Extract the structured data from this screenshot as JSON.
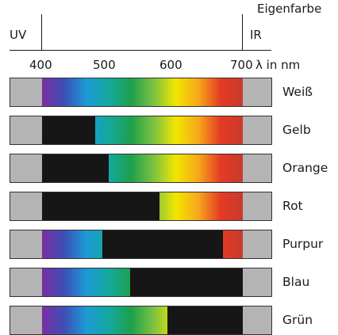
{
  "labels": {
    "eigenfarbe": "Eigenfarbe",
    "uv": "UV",
    "ir": "IR",
    "unit": "λ in nm"
  },
  "ticks": [
    "400",
    "500",
    "600",
    "700"
  ],
  "axis_range_nm": [
    400,
    700
  ],
  "rows": [
    {
      "label": "Weiß",
      "absorbed_nm": []
    },
    {
      "label": "Gelb",
      "absorbed_nm": [
        400,
        480
      ]
    },
    {
      "label": "Orange",
      "absorbed_nm": [
        400,
        500
      ]
    },
    {
      "label": "Rot",
      "absorbed_nm": [
        400,
        575
      ]
    },
    {
      "label": "Purpur",
      "absorbed_nm": [
        490,
        670
      ]
    },
    {
      "label": "Blau",
      "absorbed_nm": [
        532,
        700
      ]
    },
    {
      "label": "Grün",
      "absorbed_nm": [
        587,
        700
      ]
    }
  ],
  "colors": {
    "outside": "#b4b4b4",
    "absorbed": "#161616",
    "spectrum": [
      "#7a2fa0",
      "#3d4fb8",
      "#1c9ad6",
      "#13a89e",
      "#1ea04b",
      "#7cc242",
      "#f2e600",
      "#f7a81b",
      "#e43b24",
      "#c9392d"
    ]
  }
}
